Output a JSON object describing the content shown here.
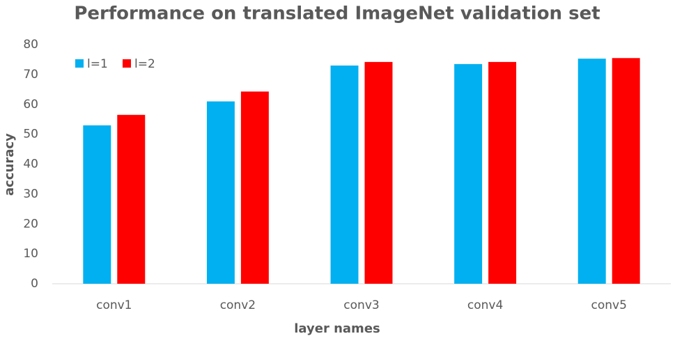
{
  "chart_data": {
    "type": "bar",
    "title": "Performance on translated ImageNet validation set",
    "x_label": "layer names",
    "y_label": "accuracy",
    "categories": [
      "conv1",
      "conv2",
      "conv3",
      "conv4",
      "conv5"
    ],
    "series": [
      {
        "name": "l=1",
        "color": "#00b0f0",
        "values": [
          53,
          61,
          73,
          73.5,
          75.3
        ]
      },
      {
        "name": "l=2",
        "color": "#ff0000",
        "values": [
          56.5,
          64.3,
          74.2,
          74.2,
          75.5
        ]
      }
    ],
    "ylim": [
      0,
      80
    ],
    "yticks": [
      0,
      10,
      20,
      30,
      40,
      50,
      60,
      70,
      80
    ],
    "grid": false,
    "legend": "top-left"
  }
}
